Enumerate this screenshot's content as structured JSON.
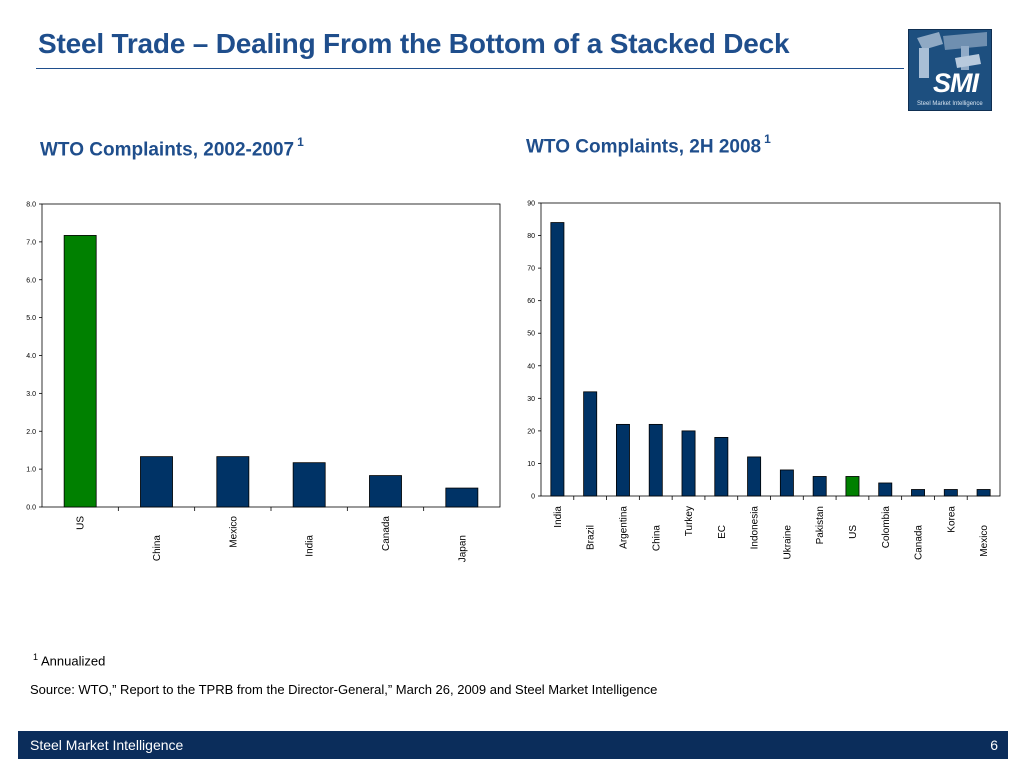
{
  "slide": {
    "title": "Steel Trade – Dealing From the Bottom of a Stacked Deck",
    "logo_text": "SMI",
    "logo_subtext": "Steel Market Intelligence",
    "footnote_marker": "1",
    "footnote_text": "Annualized",
    "source": "Source: WTO,” Report to the TPRB from the Director-General,” March 26, 2009 and Steel Market Intelligence",
    "footer_left": "Steel Market Intelligence",
    "page_number": "6"
  },
  "colors": {
    "title": "#1f4e8c",
    "bar_default": "#003366",
    "bar_highlight": "#008000",
    "footer_bg": "#0b2d5b"
  },
  "chart_data": [
    {
      "type": "bar",
      "title": "WTO Complaints, 2002-2007",
      "title_superscript": "1",
      "categories": [
        "US",
        "China",
        "Mexico",
        "India",
        "Canada",
        "Japan"
      ],
      "values": [
        7.17,
        1.33,
        1.33,
        1.17,
        0.83,
        0.5
      ],
      "highlight_category": "US",
      "ylim": [
        0,
        8
      ],
      "yticks": [
        "0.0",
        "1.0",
        "2.0",
        "3.0",
        "4.0",
        "5.0",
        "6.0",
        "7.0",
        "8.0"
      ],
      "grid": false,
      "legend": "none"
    },
    {
      "type": "bar",
      "title": "WTO Complaints, 2H 2008",
      "title_superscript": "1",
      "categories": [
        "India",
        "Brazil",
        "Argentina",
        "China",
        "Turkey",
        "EC",
        "Indonesia",
        "Ukraine",
        "Pakistan",
        "US",
        "Colombia",
        "Canada",
        "Korea",
        "Mexico"
      ],
      "values": [
        84,
        32,
        22,
        22,
        20,
        18,
        12,
        8,
        6,
        6,
        4,
        2,
        2,
        2
      ],
      "highlight_category": "US",
      "ylim": [
        0,
        90
      ],
      "yticks": [
        "0",
        "10",
        "20",
        "30",
        "40",
        "50",
        "60",
        "70",
        "80",
        "90"
      ],
      "grid": false,
      "legend": "none"
    }
  ]
}
